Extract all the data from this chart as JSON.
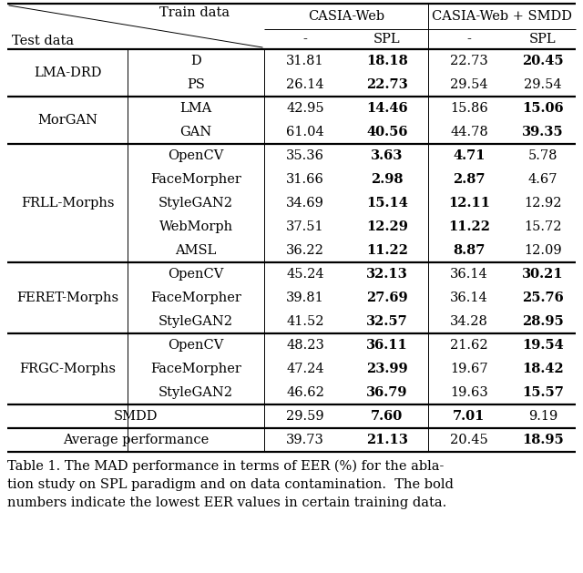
{
  "caption_lines": [
    "Table 1. The MAD performance in terms of EER (%) for the abla-",
    "tion study on SPL paradigm and on data contamination.  The bold",
    "numbers indicate the lowest EER values in certain training data."
  ],
  "rows": [
    {
      "group": "LMA-DRD",
      "sub": "D",
      "v1": "31.81",
      "v2": "18.18",
      "v3": "22.73",
      "v4": "20.45",
      "bold": [
        false,
        true,
        false,
        true
      ]
    },
    {
      "group": "LMA-DRD",
      "sub": "PS",
      "v1": "26.14",
      "v2": "22.73",
      "v3": "29.54",
      "v4": "29.54",
      "bold": [
        false,
        true,
        false,
        false
      ]
    },
    {
      "group": "MorGAN",
      "sub": "LMA",
      "v1": "42.95",
      "v2": "14.46",
      "v3": "15.86",
      "v4": "15.06",
      "bold": [
        false,
        true,
        false,
        true
      ]
    },
    {
      "group": "MorGAN",
      "sub": "GAN",
      "v1": "61.04",
      "v2": "40.56",
      "v3": "44.78",
      "v4": "39.35",
      "bold": [
        false,
        true,
        false,
        true
      ]
    },
    {
      "group": "FRLL-Morphs",
      "sub": "OpenCV",
      "v1": "35.36",
      "v2": "3.63",
      "v3": "4.71",
      "v4": "5.78",
      "bold": [
        false,
        true,
        true,
        false
      ]
    },
    {
      "group": "FRLL-Morphs",
      "sub": "FaceMorpher",
      "v1": "31.66",
      "v2": "2.98",
      "v3": "2.87",
      "v4": "4.67",
      "bold": [
        false,
        true,
        true,
        false
      ]
    },
    {
      "group": "FRLL-Morphs",
      "sub": "StyleGAN2",
      "v1": "34.69",
      "v2": "15.14",
      "v3": "12.11",
      "v4": "12.92",
      "bold": [
        false,
        true,
        true,
        false
      ]
    },
    {
      "group": "FRLL-Morphs",
      "sub": "WebMorph",
      "v1": "37.51",
      "v2": "12.29",
      "v3": "11.22",
      "v4": "15.72",
      "bold": [
        false,
        true,
        true,
        false
      ]
    },
    {
      "group": "FRLL-Morphs",
      "sub": "AMSL",
      "v1": "36.22",
      "v2": "11.22",
      "v3": "8.87",
      "v4": "12.09",
      "bold": [
        false,
        true,
        true,
        false
      ]
    },
    {
      "group": "FERET-Morphs",
      "sub": "OpenCV",
      "v1": "45.24",
      "v2": "32.13",
      "v3": "36.14",
      "v4": "30.21",
      "bold": [
        false,
        true,
        false,
        true
      ]
    },
    {
      "group": "FERET-Morphs",
      "sub": "FaceMorpher",
      "v1": "39.81",
      "v2": "27.69",
      "v3": "36.14",
      "v4": "25.76",
      "bold": [
        false,
        true,
        false,
        true
      ]
    },
    {
      "group": "FERET-Morphs",
      "sub": "StyleGAN2",
      "v1": "41.52",
      "v2": "32.57",
      "v3": "34.28",
      "v4": "28.95",
      "bold": [
        false,
        true,
        false,
        true
      ]
    },
    {
      "group": "FRGC-Morphs",
      "sub": "OpenCV",
      "v1": "48.23",
      "v2": "36.11",
      "v3": "21.62",
      "v4": "19.54",
      "bold": [
        false,
        true,
        false,
        true
      ]
    },
    {
      "group": "FRGC-Morphs",
      "sub": "FaceMorpher",
      "v1": "47.24",
      "v2": "23.99",
      "v3": "19.67",
      "v4": "18.42",
      "bold": [
        false,
        true,
        false,
        true
      ]
    },
    {
      "group": "FRGC-Morphs",
      "sub": "StyleGAN2",
      "v1": "46.62",
      "v2": "36.79",
      "v3": "19.63",
      "v4": "15.57",
      "bold": [
        false,
        true,
        false,
        true
      ]
    },
    {
      "group": "SMDD",
      "sub": "",
      "v1": "29.59",
      "v2": "7.60",
      "v3": "7.01",
      "v4": "9.19",
      "bold": [
        false,
        true,
        true,
        false
      ]
    },
    {
      "group": "Average performance",
      "sub": "",
      "v1": "39.73",
      "v2": "21.13",
      "v3": "20.45",
      "v4": "18.95",
      "bold": [
        false,
        true,
        false,
        true
      ]
    }
  ],
  "group_thick_after": [
    "LMA-DRD",
    "MorGAN",
    "FRLL-Morphs",
    "FERET-Morphs",
    "FRGC-Morphs",
    "SMDD"
  ],
  "lw_thick": 1.6,
  "lw_thin": 0.7,
  "lw_mid": 1.0,
  "fontsize_table": 10.5,
  "fontsize_caption": 10.5,
  "bg": "#ffffff"
}
